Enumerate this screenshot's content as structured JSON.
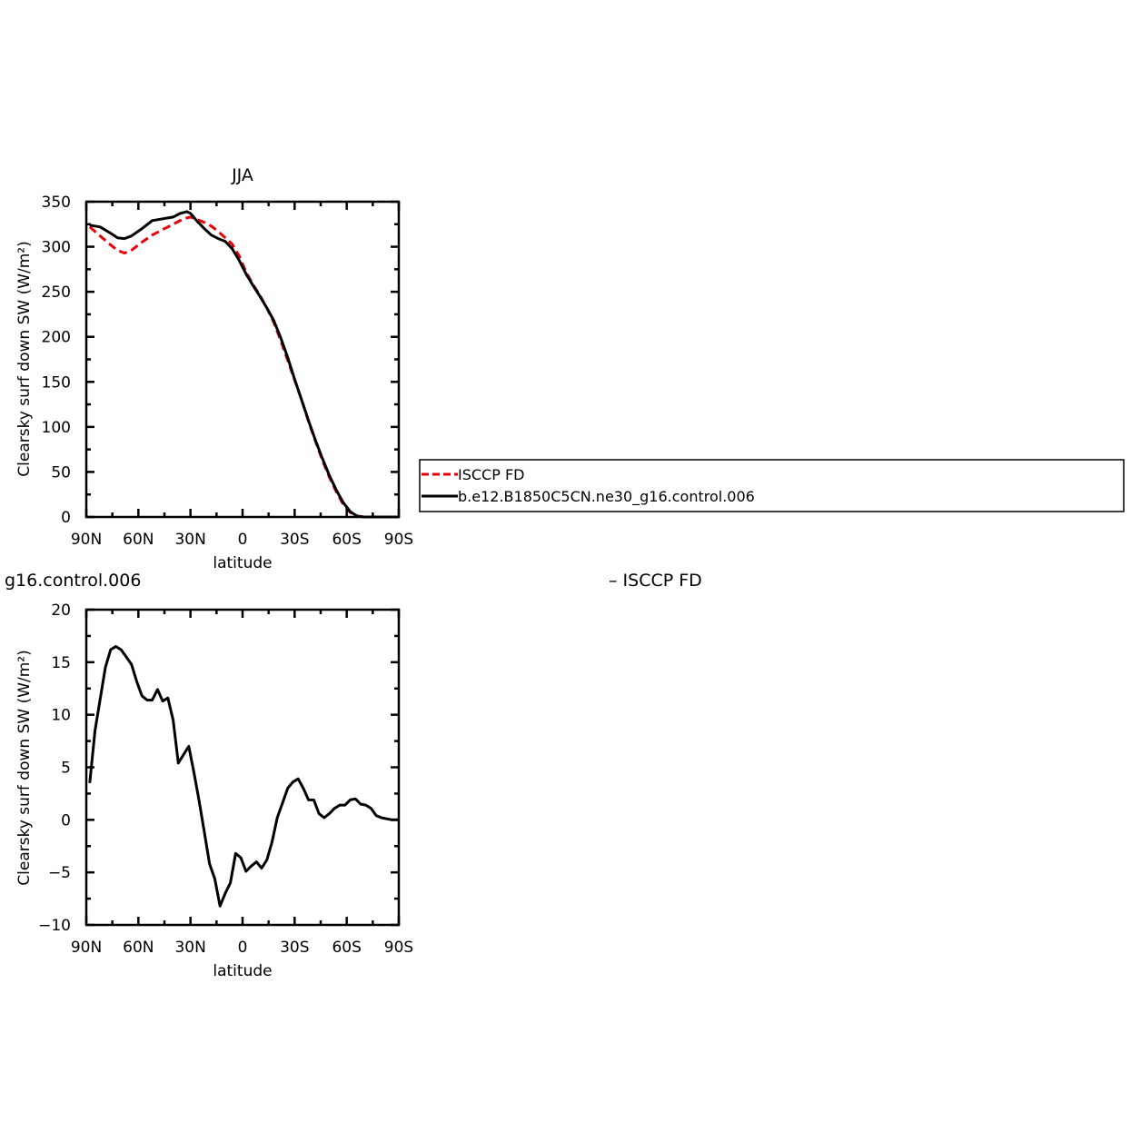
{
  "chart_data": [
    {
      "type": "line",
      "title": "JJA",
      "xlabel": "latitude",
      "ylabel": "Clearsky surf down SW (W/m²)",
      "xlim": [
        -90,
        90
      ],
      "ylim": [
        0,
        350
      ],
      "x_ticks": [
        -90,
        -60,
        -30,
        0,
        30,
        60,
        90
      ],
      "x_tick_labels": [
        "90N",
        "60N",
        "30N",
        "0",
        "30S",
        "60S",
        "90S"
      ],
      "y_ticks": [
        0,
        50,
        100,
        150,
        200,
        250,
        300,
        350
      ],
      "y_tick_labels": [
        "0",
        "50",
        "100",
        "150",
        "200",
        "250",
        "300",
        "350"
      ],
      "grid": false,
      "legend_placement": "right",
      "series": [
        {
          "name": "ISCCP FD",
          "color": "#e8000b",
          "style": "dashed",
          "x": [
            -88,
            -82,
            -76,
            -72,
            -68,
            -64,
            -58,
            -52,
            -46,
            -40,
            -34,
            -30,
            -26,
            -22,
            -18,
            -14,
            -10,
            -6,
            -2,
            2,
            6,
            10,
            14,
            18,
            22,
            26,
            30,
            34,
            38,
            42,
            46,
            50,
            54,
            58,
            62,
            66,
            70,
            74,
            78,
            82,
            86,
            90
          ],
          "y": [
            322,
            312,
            302,
            296,
            293,
            296,
            305,
            313,
            319,
            325,
            331,
            333,
            330,
            327,
            323,
            317,
            310,
            303,
            290,
            272,
            258,
            246,
            232,
            216,
            196,
            174,
            152,
            130,
            106,
            84,
            63,
            44,
            28,
            14,
            5,
            1,
            0,
            0,
            0,
            0,
            0,
            0
          ]
        },
        {
          "name": "b.e12.B1850C5CN.ne30_g16.control.006",
          "color": "#000000",
          "style": "solid",
          "x": [
            -88,
            -82,
            -76,
            -72,
            -68,
            -64,
            -58,
            -52,
            -46,
            -40,
            -36,
            -32,
            -30,
            -26,
            -22,
            -18,
            -14,
            -10,
            -6,
            -2,
            2,
            6,
            10,
            14,
            18,
            22,
            26,
            30,
            34,
            38,
            42,
            46,
            50,
            54,
            58,
            62,
            66,
            70,
            74,
            78,
            82,
            86,
            90
          ],
          "y": [
            324,
            322,
            315,
            310,
            309,
            312,
            320,
            329,
            331,
            333,
            337,
            339,
            337,
            328,
            320,
            313,
            309,
            306,
            298,
            285,
            270,
            257,
            245,
            232,
            218,
            199,
            177,
            153,
            130,
            107,
            85,
            65,
            46,
            30,
            16,
            6,
            1,
            0,
            0,
            0,
            0,
            0,
            0
          ]
        }
      ]
    },
    {
      "type": "line",
      "title_fragment": "g16.control.006",
      "title_fragment_right": "– ISCCP FD",
      "xlabel": "latitude",
      "ylabel": "Clearsky surf down SW (W/m²)",
      "xlim": [
        -90,
        90
      ],
      "ylim": [
        -10,
        20
      ],
      "x_ticks": [
        -90,
        -60,
        -30,
        0,
        30,
        60,
        90
      ],
      "x_tick_labels": [
        "90N",
        "60N",
        "30N",
        "0",
        "30S",
        "60S",
        "90S"
      ],
      "y_ticks": [
        -10,
        -5,
        0,
        5,
        10,
        15,
        20
      ],
      "y_tick_labels": [
        "−10",
        "−5",
        "0",
        "5",
        "10",
        "15",
        "20"
      ],
      "grid": false,
      "series": [
        {
          "color": "#000000",
          "style": "solid",
          "x": [
            -88,
            -85,
            -82,
            -79,
            -76,
            -73,
            -70,
            -67,
            -64,
            -61,
            -58,
            -55,
            -52,
            -49,
            -46,
            -43,
            -40,
            -37,
            -34,
            -31,
            -28,
            -25,
            -22,
            -19,
            -16,
            -13,
            -10,
            -7,
            -4,
            -1,
            2,
            5,
            8,
            11,
            14,
            17,
            20,
            23,
            26,
            29,
            32,
            35,
            38,
            41,
            44,
            47,
            50,
            53,
            56,
            59,
            62,
            65,
            68,
            71,
            74,
            77,
            80,
            83,
            86,
            90
          ],
          "y": [
            3.5,
            8.5,
            11.5,
            14.5,
            16.2,
            16.5,
            16.2,
            15.5,
            14.8,
            13.2,
            11.8,
            11.4,
            11.4,
            12.4,
            11.3,
            11.6,
            9.5,
            5.4,
            6.2,
            7.0,
            4.5,
            1.8,
            -1.2,
            -4.2,
            -5.6,
            -8.2,
            -7.0,
            -6.0,
            -3.2,
            -3.6,
            -4.9,
            -4.4,
            -4.0,
            -4.6,
            -3.8,
            -2.1,
            0.2,
            1.6,
            3.0,
            3.6,
            3.9,
            3.0,
            1.9,
            1.9,
            0.6,
            0.2,
            0.6,
            1.1,
            1.4,
            1.4,
            1.9,
            2.0,
            1.5,
            1.4,
            1.1,
            0.4,
            0.2,
            0.1,
            0.0,
            0.0
          ]
        }
      ]
    }
  ]
}
